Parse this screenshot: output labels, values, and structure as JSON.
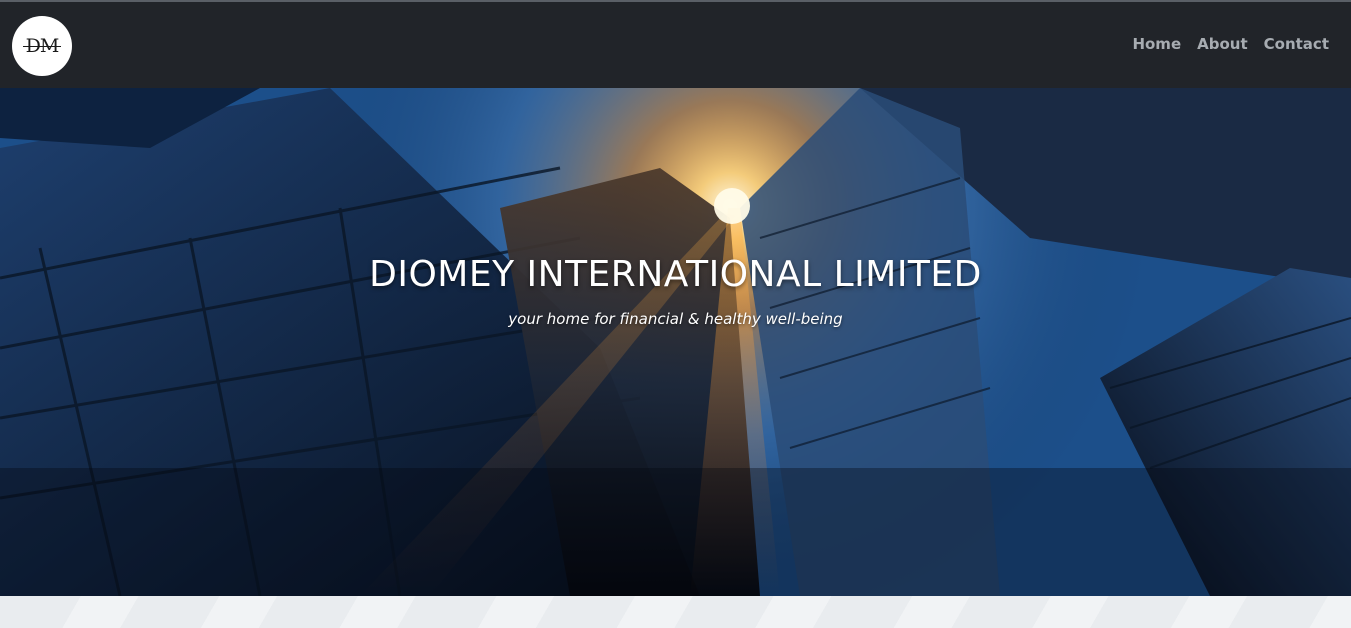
{
  "brand": {
    "logo_text": "DM"
  },
  "nav": {
    "items": [
      {
        "label": "Home"
      },
      {
        "label": "About"
      },
      {
        "label": "Contact"
      }
    ]
  },
  "hero": {
    "title": "DIOMEY INTERNATIONAL LIMITED",
    "tagline": "your home for financial & healthy well-being",
    "image_icon": "city-skyscrapers-sunburst-image"
  },
  "colors": {
    "navbar_bg": "#212429",
    "nav_link": "#a7acb1",
    "hero_text": "#ffffff",
    "sky_blue": "#3d78b8",
    "sun_orange": "#ff9a2e"
  }
}
